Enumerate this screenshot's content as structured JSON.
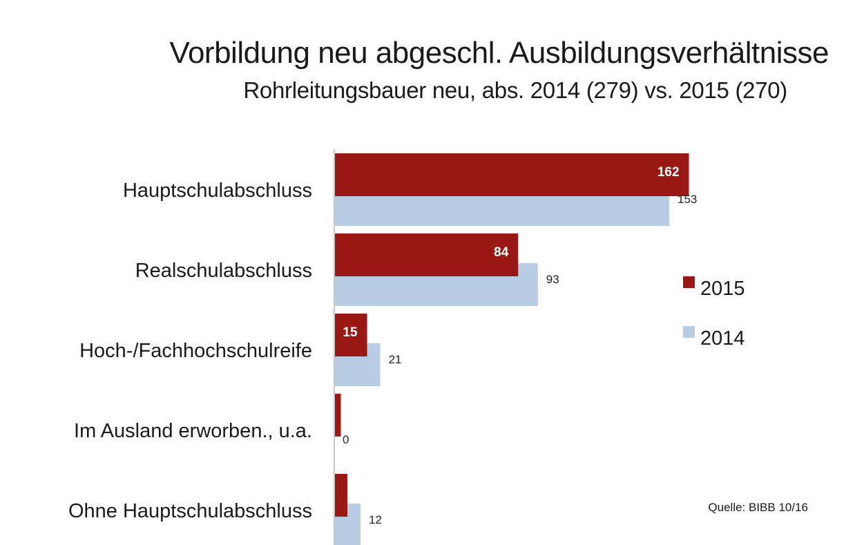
{
  "title": "Vorbildung neu abgeschl. Ausbildungsverhältnisse",
  "subtitle": "Rohrleitungsbauer neu, abs. 2014 (279) vs. 2015 (270)",
  "source": "Quelle: BIBB 10/16",
  "colors": {
    "s2015": "#9b1915",
    "s2014": "#b8cce4",
    "axis": "#c8c8c8"
  },
  "chart_data": {
    "type": "bar",
    "orientation": "horizontal",
    "title": "Vorbildung neu abgeschl. Ausbildungsverhältnisse",
    "subtitle": "Rohrleitungsbauer neu, abs. 2014 (279) vs. 2015 (270)",
    "categories": [
      "Hauptschulabschluss",
      "Realschulabschluss",
      "Hoch-/Fachhochschulreife",
      "Im Ausland erworben., u.a.",
      "Ohne Hauptschulabschluss"
    ],
    "series": [
      {
        "name": "2015",
        "values": [
          162,
          84,
          15,
          3,
          6
        ],
        "labels": [
          "162",
          "84",
          "15",
          "",
          ""
        ]
      },
      {
        "name": "2014",
        "values": [
          153,
          93,
          21,
          0,
          12
        ],
        "labels": [
          "153",
          "93",
          "21",
          "0",
          "12"
        ]
      }
    ],
    "xlim": [
      0,
      170
    ],
    "grid": false,
    "legend": "right"
  }
}
